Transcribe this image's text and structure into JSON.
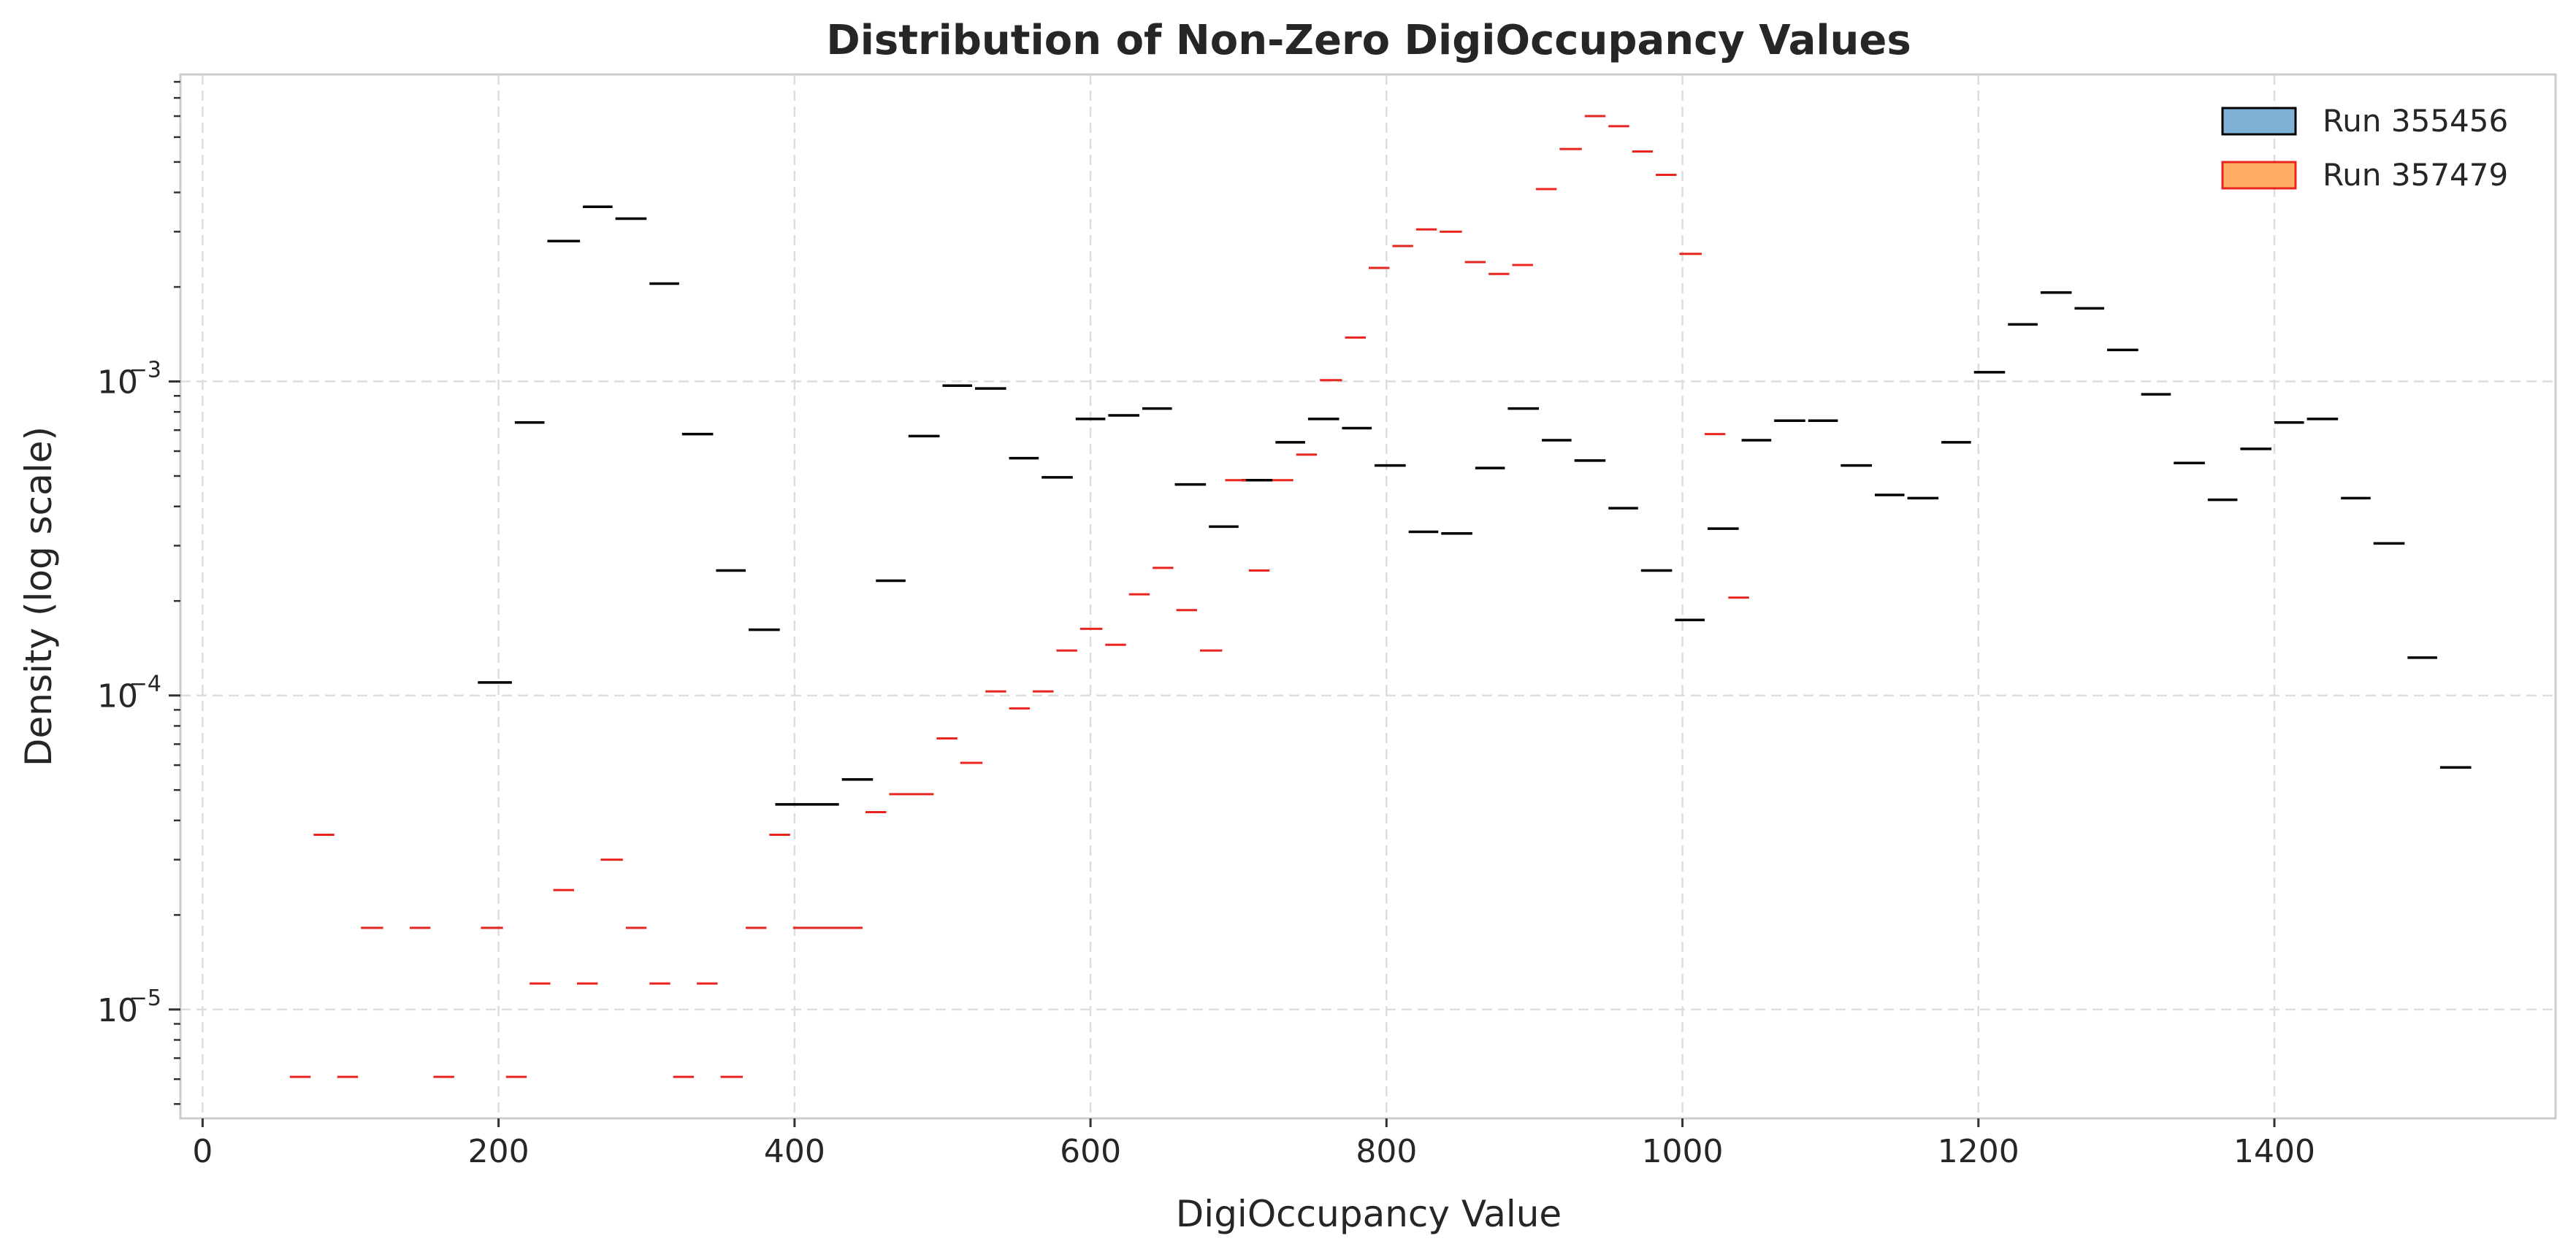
{
  "chart_data": {
    "type": "histogram-step",
    "title": "Distribution of Non-Zero DigiOccupancy Values",
    "xlabel": "DigiOccupancy Value",
    "ylabel": "Density (log scale)",
    "xlim": [
      -15,
      1590
    ],
    "ylim": [
      4.5e-06,
      0.0095
    ],
    "yscale": "log",
    "x_ticks": [
      0,
      200,
      400,
      600,
      800,
      1000,
      1200,
      1400
    ],
    "y_ticks": [
      {
        "value": 0.001,
        "base": "10",
        "exp": "−3"
      },
      {
        "value": 0.0001,
        "base": "10",
        "exp": "−4"
      },
      {
        "value": 1e-05,
        "base": "10",
        "exp": "−5"
      }
    ],
    "grid": true,
    "legend_position": "top-right",
    "series": [
      {
        "name": "Run 355456",
        "color": "#000000",
        "fill": "#7fb0d5",
        "points": [
          [
            185,
            210,
            0.00011
          ],
          [
            210,
            232,
            0.00074
          ],
          [
            232,
            256,
            0.0028
          ],
          [
            256,
            278,
            0.0036
          ],
          [
            278,
            301,
            0.0033
          ],
          [
            301,
            323,
            0.00205
          ],
          [
            323,
            346,
            0.00068
          ],
          [
            346,
            368,
            0.00025
          ],
          [
            368,
            391,
            0.000162
          ],
          [
            386,
            431,
            4.5e-05
          ],
          [
            431,
            454,
            5.4e-05
          ],
          [
            454,
            476,
            0.000232
          ],
          [
            476,
            499,
            0.00067
          ],
          [
            499,
            521,
            0.00097
          ],
          [
            521,
            544,
            0.00095
          ],
          [
            544,
            566,
            0.00057
          ],
          [
            566,
            589,
            0.000495
          ],
          [
            589,
            611,
            0.00076
          ],
          [
            611,
            634,
            0.00078
          ],
          [
            634,
            656,
            0.00082
          ],
          [
            656,
            679,
            0.00047
          ],
          [
            679,
            701,
            0.000345
          ],
          [
            701,
            724,
            0.000485
          ],
          [
            724,
            746,
            0.00064
          ],
          [
            746,
            769,
            0.00076
          ],
          [
            769,
            791,
            0.00071
          ],
          [
            791,
            814,
            0.00054
          ],
          [
            814,
            836,
            0.000332
          ],
          [
            836,
            859,
            0.000328
          ],
          [
            859,
            881,
            0.00053
          ],
          [
            881,
            904,
            0.00082
          ],
          [
            904,
            926,
            0.00065
          ],
          [
            926,
            949,
            0.00056
          ],
          [
            949,
            971,
            0.000395
          ],
          [
            971,
            994,
            0.00025
          ],
          [
            994,
            1016,
            0.000174
          ],
          [
            1016,
            1039,
            0.00034
          ],
          [
            1039,
            1061,
            0.00065
          ],
          [
            1061,
            1084,
            0.00075
          ],
          [
            1084,
            1106,
            0.00075
          ],
          [
            1106,
            1129,
            0.00054
          ],
          [
            1129,
            1151,
            0.000435
          ],
          [
            1151,
            1174,
            0.000425
          ],
          [
            1174,
            1196,
            0.00064
          ],
          [
            1196,
            1219,
            0.00107
          ],
          [
            1219,
            1241,
            0.00152
          ],
          [
            1241,
            1264,
            0.00192
          ],
          [
            1264,
            1286,
            0.00171
          ],
          [
            1286,
            1309,
            0.00126
          ],
          [
            1309,
            1331,
            0.00091
          ],
          [
            1331,
            1354,
            0.00055
          ],
          [
            1354,
            1376,
            0.00042
          ],
          [
            1376,
            1399,
            0.00061
          ],
          [
            1399,
            1421,
            0.00074
          ],
          [
            1421,
            1444,
            0.00076
          ],
          [
            1444,
            1466,
            0.000425
          ],
          [
            1466,
            1489,
            0.000305
          ],
          [
            1489,
            1511,
            0.000132
          ],
          [
            1511,
            1534,
            5.9e-05
          ]
        ]
      },
      {
        "name": "Run 357479",
        "color": "#e8241f",
        "fill": "#ffad65",
        "points": [
          [
            58,
            74,
            6.1e-06
          ],
          [
            74,
            90,
            3.6e-05
          ],
          [
            90,
            106,
            6.1e-06
          ],
          [
            106,
            123,
            1.82e-05
          ],
          [
            139,
            155,
            1.82e-05
          ],
          [
            155,
            171,
            6.1e-06
          ],
          [
            187,
            204,
            1.82e-05
          ],
          [
            204,
            220,
            6.1e-06
          ],
          [
            220,
            236,
            1.21e-05
          ],
          [
            236,
            252,
            2.4e-05
          ],
          [
            252,
            268,
            1.21e-05
          ],
          [
            268,
            285,
            3e-05
          ],
          [
            285,
            301,
            1.82e-05
          ],
          [
            301,
            317,
            1.21e-05
          ],
          [
            317,
            333,
            6.1e-06
          ],
          [
            333,
            349,
            1.21e-05
          ],
          [
            349,
            366,
            6.1e-06
          ],
          [
            366,
            382,
            1.82e-05
          ],
          [
            382,
            398,
            3.6e-05
          ],
          [
            398,
            447,
            1.82e-05
          ],
          [
            447,
            463,
            4.25e-05
          ],
          [
            463,
            495,
            4.85e-05
          ],
          [
            495,
            511,
            7.3e-05
          ],
          [
            511,
            528,
            6.1e-05
          ],
          [
            528,
            544,
            0.000103
          ],
          [
            544,
            560,
            9.1e-05
          ],
          [
            560,
            576,
            0.000103
          ],
          [
            576,
            592,
            0.000139
          ],
          [
            592,
            609,
            0.000163
          ],
          [
            609,
            625,
            0.000145
          ],
          [
            625,
            641,
            0.00021
          ],
          [
            641,
            657,
            0.000255
          ],
          [
            657,
            673,
            0.000187
          ],
          [
            673,
            690,
            0.000139
          ],
          [
            690,
            706,
            0.000485
          ],
          [
            706,
            722,
            0.00025
          ],
          [
            722,
            738,
            0.000485
          ],
          [
            738,
            754,
            0.000585
          ],
          [
            754,
            771,
            0.00101
          ],
          [
            771,
            787,
            0.00138
          ],
          [
            787,
            803,
            0.0023
          ],
          [
            803,
            819,
            0.0027
          ],
          [
            819,
            835,
            0.00305
          ],
          [
            835,
            852,
            0.003
          ],
          [
            852,
            868,
            0.0024
          ],
          [
            868,
            884,
            0.0022
          ],
          [
            884,
            900,
            0.00235
          ],
          [
            900,
            916,
            0.0041
          ],
          [
            916,
            933,
            0.0055
          ],
          [
            933,
            949,
            0.007
          ],
          [
            949,
            965,
            0.0065
          ],
          [
            965,
            981,
            0.0054
          ],
          [
            981,
            997,
            0.00455
          ],
          [
            997,
            1014,
            0.00255
          ],
          [
            1014,
            1030,
            0.00068
          ],
          [
            1030,
            1046,
            0.000205
          ]
        ]
      }
    ]
  }
}
